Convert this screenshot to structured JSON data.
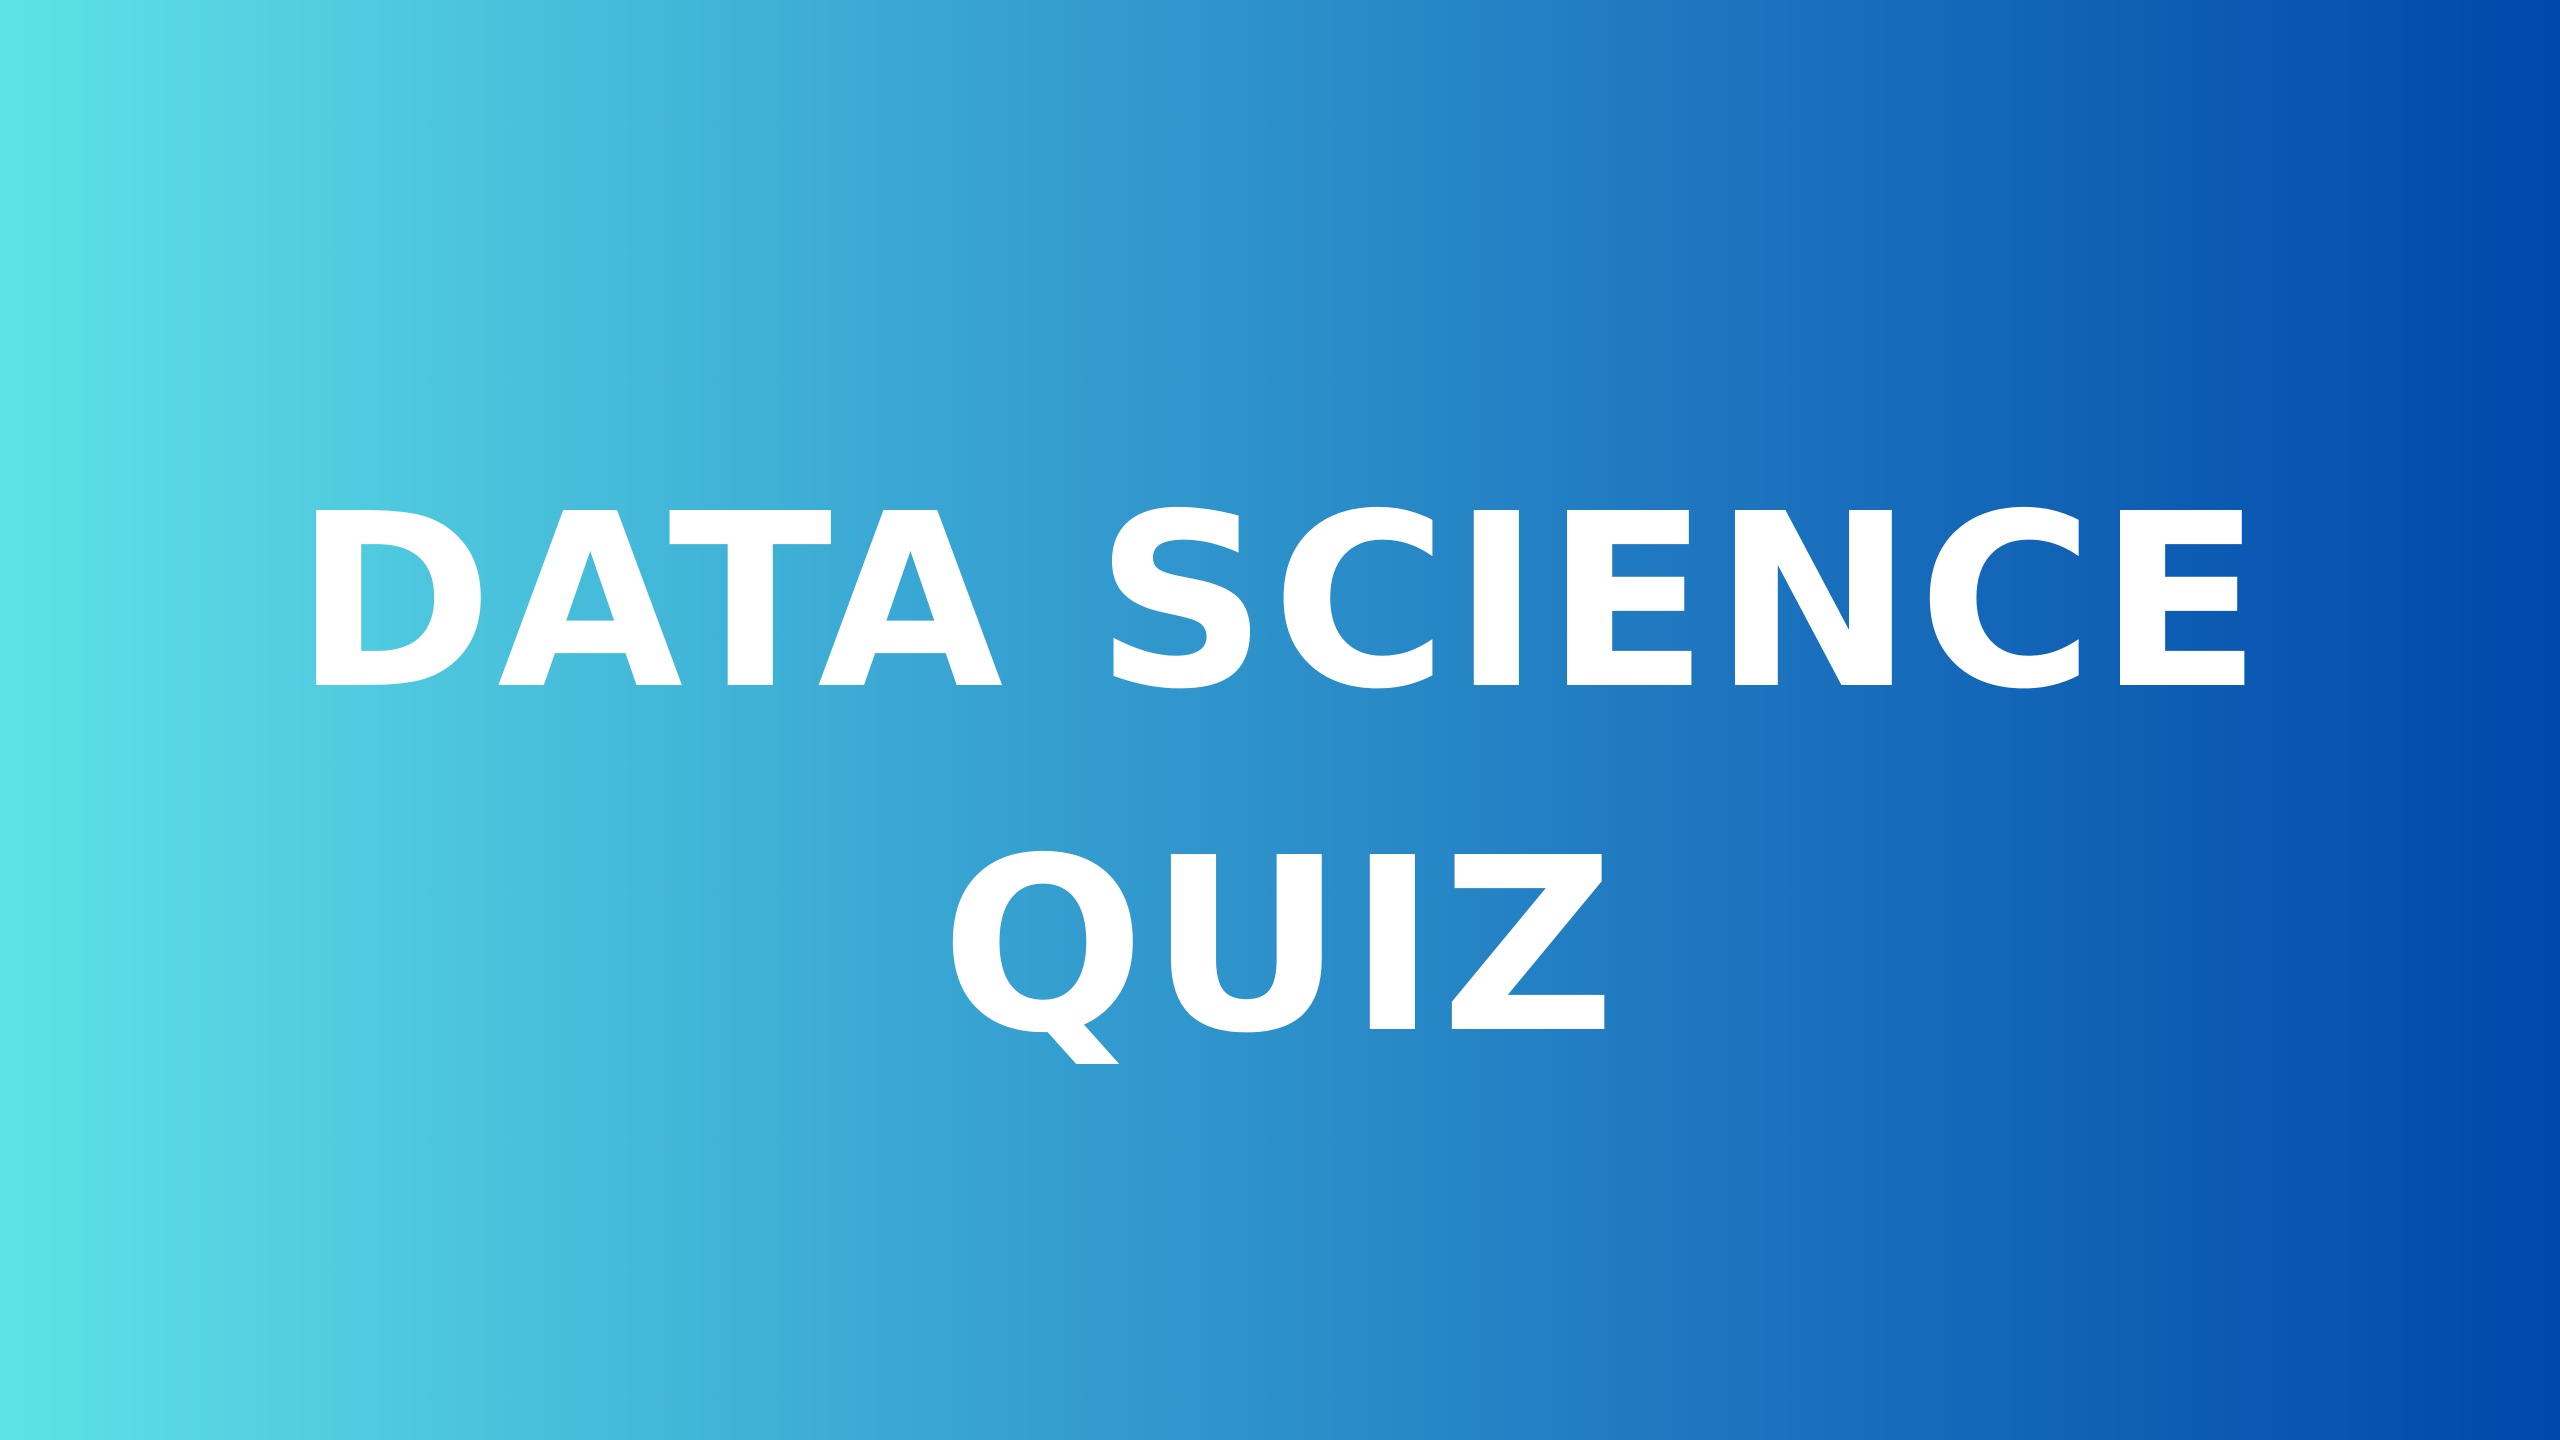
{
  "title": {
    "line1": "DATA SCIENCE",
    "line2": "QUIZ"
  },
  "colors": {
    "gradient_start": "#5ee2e6",
    "gradient_end": "#0048aa",
    "text": "#ffffff"
  }
}
